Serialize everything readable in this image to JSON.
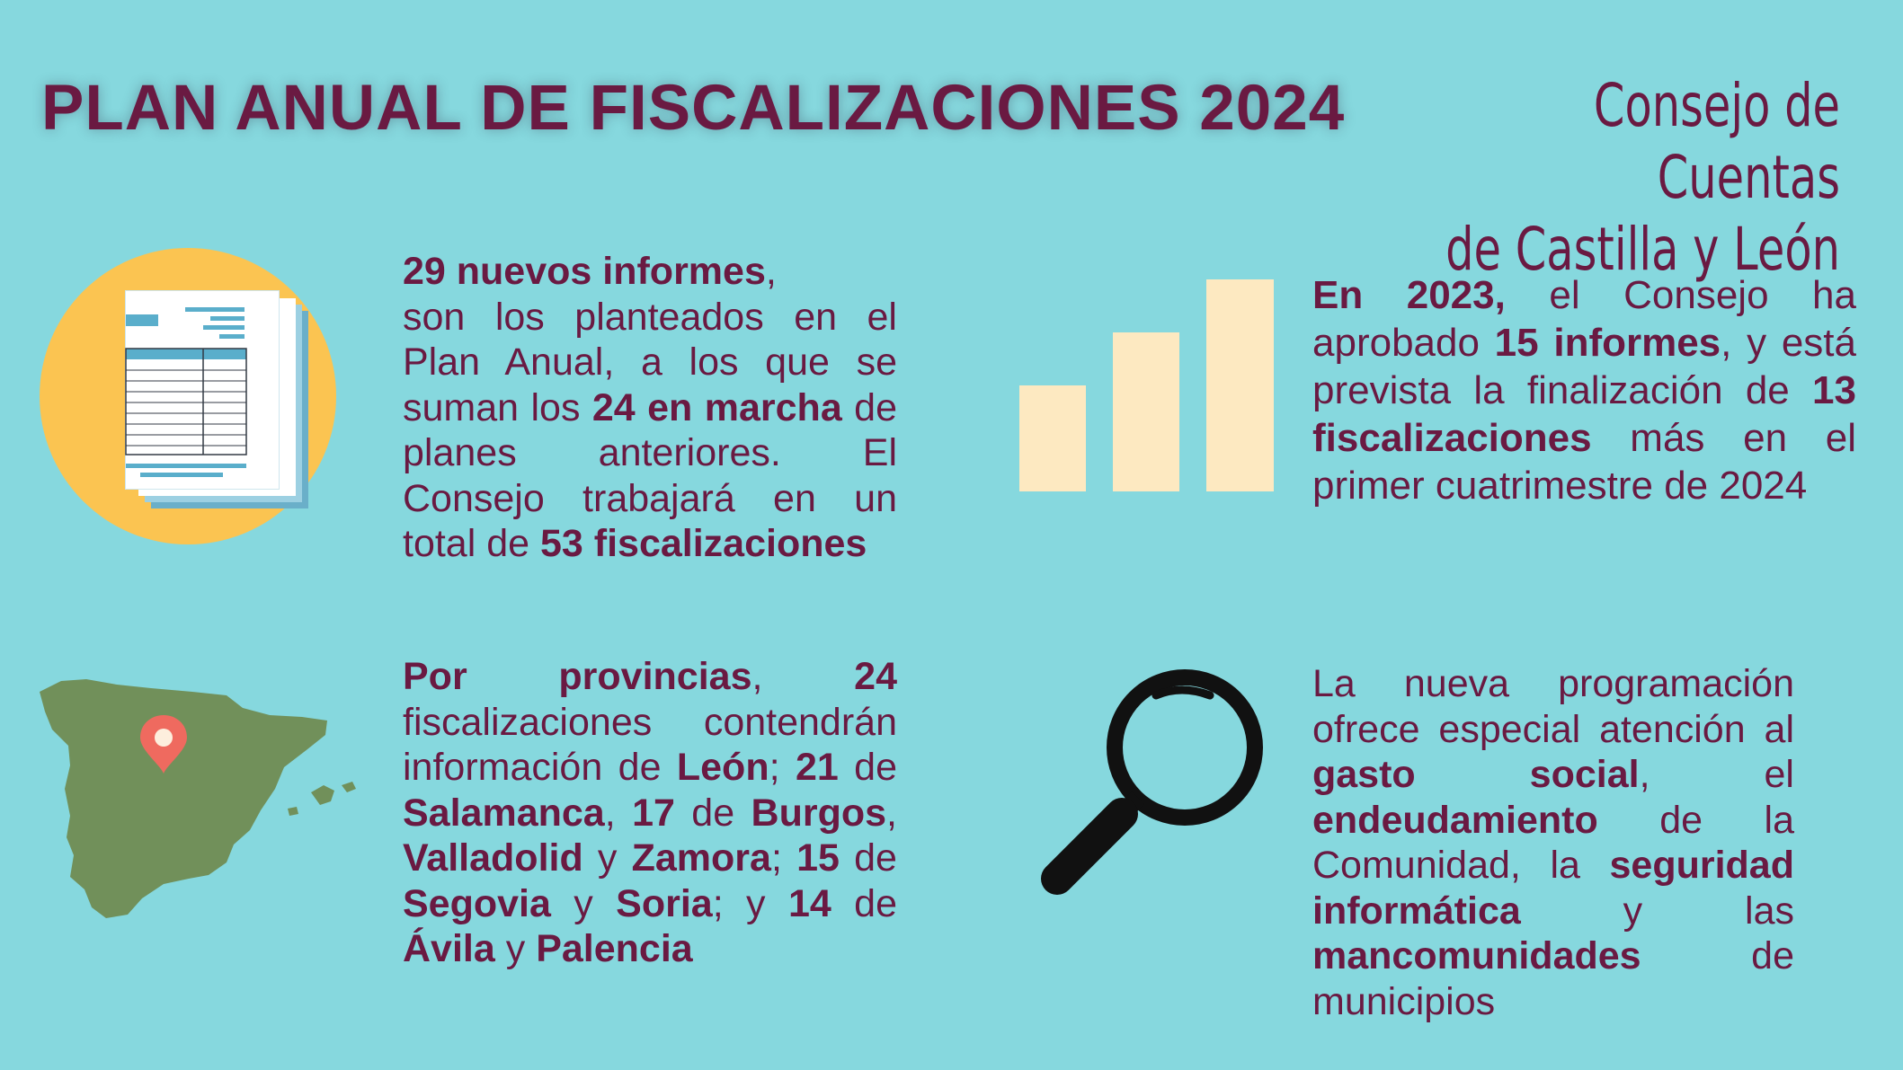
{
  "title": "PLAN ANUAL DE FISCALIZACIONES 2024",
  "organization": {
    "line1": "Consejo de Cuentas",
    "line2": "de Castilla y León"
  },
  "blocks": {
    "new_reports": {
      "lead": "29 nuevos informes",
      "t1": ",",
      "t2": "son los planteados en el Plan Anual, a los que se suman los ",
      "b1": "24 en marcha",
      "t3": " de planes anteriores. El Consejo trabajará en un total de ",
      "b2": "53 fiscalizaciones"
    },
    "year_2023": {
      "b1": "En 2023,",
      "t1": " el Consejo ha aprobado ",
      "b2": "15 informes",
      "t2": ", y está prevista la finalización de ",
      "b3": "13 fiscalizaciones",
      "t3": " más en el primer cuatrimestre de 2024"
    },
    "provinces": {
      "b1": "Por provincias",
      "t1": ", ",
      "b2": "24",
      "t2": " fiscalizaciones contendrán información de ",
      "b3": "León",
      "t3": "; ",
      "b4": "21",
      "t4": " de ",
      "b5": "Salamanca",
      "t5": ", ",
      "b6": "17",
      "t6": " de ",
      "b7": "Burgos",
      "t7": ", ",
      "b8": "Valladolid",
      "t8": " y ",
      "b9": "Zamora",
      "t9": "; ",
      "b10": "15",
      "t10": " de ",
      "b11": "Segovia",
      "t11": " y ",
      "b12": "Soria",
      "t12": "; y ",
      "b13": "14",
      "t13": " de ",
      "b14": "Ávila",
      "t14": " y ",
      "b15": "Palencia"
    },
    "programming": {
      "t1": "La nueva programación ofrece especial atención al ",
      "b1": "gasto social",
      "t2": ", el ",
      "b2": "endeudamiento",
      "t3": " de la Comunidad, la ",
      "b3": "seguridad informática",
      "t4": " y las ",
      "b4": "mancomunidades",
      "t5": " de municipios"
    }
  },
  "colors": {
    "background": "#86d8de",
    "text": "#6a1a42",
    "document_circle": "#fbc451",
    "bars": "#fde9c1",
    "map": "#71905a",
    "pin": "#ef6a5f",
    "magnifier": "#111111"
  },
  "icons": [
    "document-icon",
    "bar-chart-icon",
    "spain-map-icon",
    "location-pin-icon",
    "magnifier-icon"
  ]
}
